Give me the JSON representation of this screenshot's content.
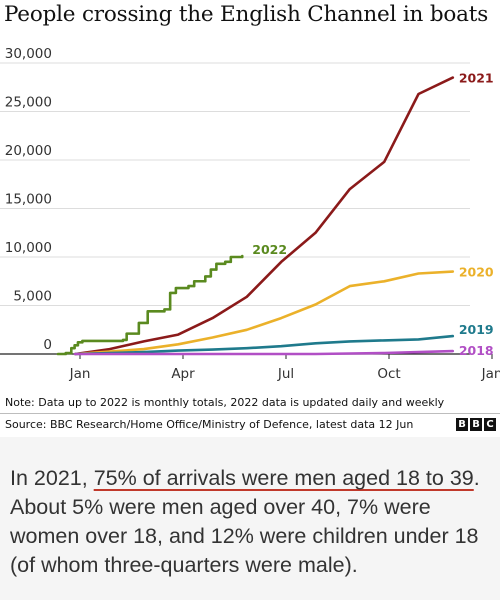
{
  "title": "People crossing the English Channel in boats",
  "note": "Note: Data up to 2022 is monthly totals, 2022 data is updated daily and weekly",
  "source": "Source: BBC Research/Home Office/Ministry of Defence, latest data 12 Jun",
  "logo_letters": [
    "B",
    "B",
    "C"
  ],
  "paragraph": {
    "before": "In 2021, ",
    "highlight": "75% of arrivals were men aged 18 to 39",
    "after": ". About 5% were men aged over 40, 7% were women over 18, and 12% were children under 18 (of whom three-quarters were male)."
  },
  "colors": {
    "gridline": "#dddddd",
    "axis": "#222222",
    "accent_underline": "#c0392b"
  },
  "chart_data": {
    "type": "line",
    "title": "People crossing the English Channel in boats",
    "xlabel": "",
    "ylabel": "",
    "x_ticks": [
      "Jan",
      "Apr",
      "Jul",
      "Oct",
      "Jan"
    ],
    "xlim": [
      "Jan",
      "Jan (next year)"
    ],
    "y_ticks": [
      "0",
      "5,000",
      "10,000",
      "15,000",
      "20,000",
      "25,000",
      "30,000"
    ],
    "ylim": [
      0,
      30000
    ],
    "grid": true,
    "legend": "series labels at end of lines",
    "series": [
      {
        "name": "2021",
        "color": "#8b1a1a",
        "points": [
          [
            "Jan",
            0
          ],
          [
            "Feb",
            500
          ],
          [
            "Mar",
            1300
          ],
          [
            "Apr",
            2000
          ],
          [
            "May",
            3700
          ],
          [
            "Jun",
            5900
          ],
          [
            "Jul",
            9500
          ],
          [
            "Aug",
            12500
          ],
          [
            "Sep",
            17000
          ],
          [
            "Oct",
            19800
          ],
          [
            "Nov",
            26800
          ],
          [
            "Dec",
            28500
          ]
        ]
      },
      {
        "name": "2020",
        "color": "#ebb12a",
        "points": [
          [
            "Jan",
            0
          ],
          [
            "Feb",
            250
          ],
          [
            "Mar",
            500
          ],
          [
            "Apr",
            1000
          ],
          [
            "May",
            1700
          ],
          [
            "Jun",
            2500
          ],
          [
            "Jul",
            3700
          ],
          [
            "Aug",
            5100
          ],
          [
            "Sep",
            7000
          ],
          [
            "Oct",
            7500
          ],
          [
            "Nov",
            8300
          ],
          [
            "Dec",
            8500
          ]
        ]
      },
      {
        "name": "2019",
        "color": "#1f7a8c",
        "points": [
          [
            "Jan",
            0
          ],
          [
            "Feb",
            100
          ],
          [
            "Mar",
            200
          ],
          [
            "Apr",
            350
          ],
          [
            "May",
            450
          ],
          [
            "Jun",
            600
          ],
          [
            "Jul",
            800
          ],
          [
            "Aug",
            1100
          ],
          [
            "Sep",
            1300
          ],
          [
            "Oct",
            1400
          ],
          [
            "Nov",
            1500
          ],
          [
            "Dec",
            1850
          ]
        ]
      },
      {
        "name": "2018",
        "color": "#b14fc5",
        "points": [
          [
            "Jan",
            0
          ],
          [
            "Feb",
            0
          ],
          [
            "Mar",
            0
          ],
          [
            "Apr",
            0
          ],
          [
            "May",
            0
          ],
          [
            "Jun",
            0
          ],
          [
            "Jul",
            0
          ],
          [
            "Aug",
            0
          ],
          [
            "Sep",
            50
          ],
          [
            "Oct",
            100
          ],
          [
            "Nov",
            200
          ],
          [
            "Dec",
            300
          ]
        ]
      },
      {
        "name": "2022",
        "color": "#5a8a1f",
        "points": [
          [
            "1 Jan",
            0
          ],
          [
            "8 Jan",
            100
          ],
          [
            "13 Jan",
            600
          ],
          [
            "16 Jan",
            900
          ],
          [
            "19 Jan",
            1200
          ],
          [
            "23 Jan",
            1350
          ],
          [
            "26 Feb",
            1450
          ],
          [
            "1 Mar",
            2100
          ],
          [
            "12 Mar",
            3200
          ],
          [
            "20 Mar",
            4400
          ],
          [
            "4 Apr",
            4600
          ],
          [
            "9 Apr",
            6300
          ],
          [
            "14 Apr",
            6800
          ],
          [
            "25 Apr",
            7000
          ],
          [
            "30 Apr",
            7500
          ],
          [
            "10 May",
            8000
          ],
          [
            "15 May",
            8700
          ],
          [
            "20 May",
            9300
          ],
          [
            "28 May",
            9500
          ],
          [
            "2 Jun",
            10000
          ],
          [
            "12 Jun",
            10100
          ]
        ]
      }
    ]
  }
}
